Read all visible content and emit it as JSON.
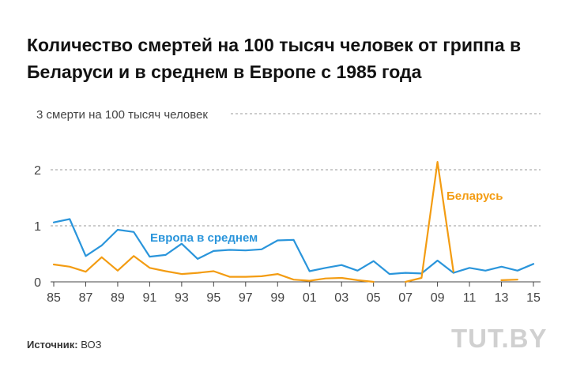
{
  "title": "Количество смертей на 100 тысяч человек от гриппа в Беларуси и в среднем в Европе с 1985 года",
  "source": {
    "label": "Источник:",
    "value": "ВОЗ"
  },
  "logo": "TUT.BY",
  "colors": {
    "europe": "#2a95db",
    "belarus": "#f39c12",
    "grid": "#999999",
    "text": "#333333"
  },
  "chart_data": {
    "type": "line",
    "x": [
      1985,
      1986,
      1987,
      1988,
      1989,
      1990,
      1991,
      1992,
      1993,
      1994,
      1995,
      1996,
      1997,
      1998,
      1999,
      2000,
      2001,
      2002,
      2003,
      2004,
      2005,
      2006,
      2007,
      2008,
      2009,
      2010,
      2011,
      2012,
      2013,
      2014,
      2015
    ],
    "tick_labels": [
      "85",
      "87",
      "89",
      "91",
      "93",
      "95",
      "97",
      "99",
      "01",
      "03",
      "05",
      "07",
      "09",
      "11",
      "13",
      "15"
    ],
    "tick_years": [
      1985,
      1987,
      1989,
      1991,
      1993,
      1995,
      1997,
      1999,
      2001,
      2003,
      2005,
      2007,
      2009,
      2011,
      2013,
      2015
    ],
    "ylim": [
      0,
      3
    ],
    "yticks": [
      0,
      1,
      2,
      3
    ],
    "ytick_labels": [
      "0",
      "1",
      "2",
      "3 смерти на 100 тысяч человек"
    ],
    "grid": true,
    "series": [
      {
        "name": "Европа в среднем",
        "color": "#2a95db",
        "values": [
          1.06,
          1.12,
          0.46,
          0.65,
          0.93,
          0.89,
          0.45,
          0.48,
          0.68,
          0.41,
          0.55,
          0.57,
          0.56,
          0.58,
          0.74,
          0.75,
          0.19,
          0.25,
          0.3,
          0.2,
          0.37,
          0.14,
          0.16,
          0.15,
          0.38,
          0.16,
          0.25,
          0.2,
          0.27,
          0.2,
          0.32
        ]
      },
      {
        "name": "Беларусь",
        "color": "#f39c12",
        "values": [
          0.31,
          0.27,
          0.18,
          0.44,
          0.2,
          0.46,
          0.25,
          0.19,
          0.14,
          0.16,
          0.19,
          0.09,
          0.09,
          0.1,
          0.14,
          0.04,
          0.02,
          0.06,
          0.07,
          0.03,
          0.0,
          null,
          0.0,
          0.07,
          2.14,
          0.18,
          null,
          null,
          0.03,
          0.04,
          null
        ]
      }
    ]
  }
}
